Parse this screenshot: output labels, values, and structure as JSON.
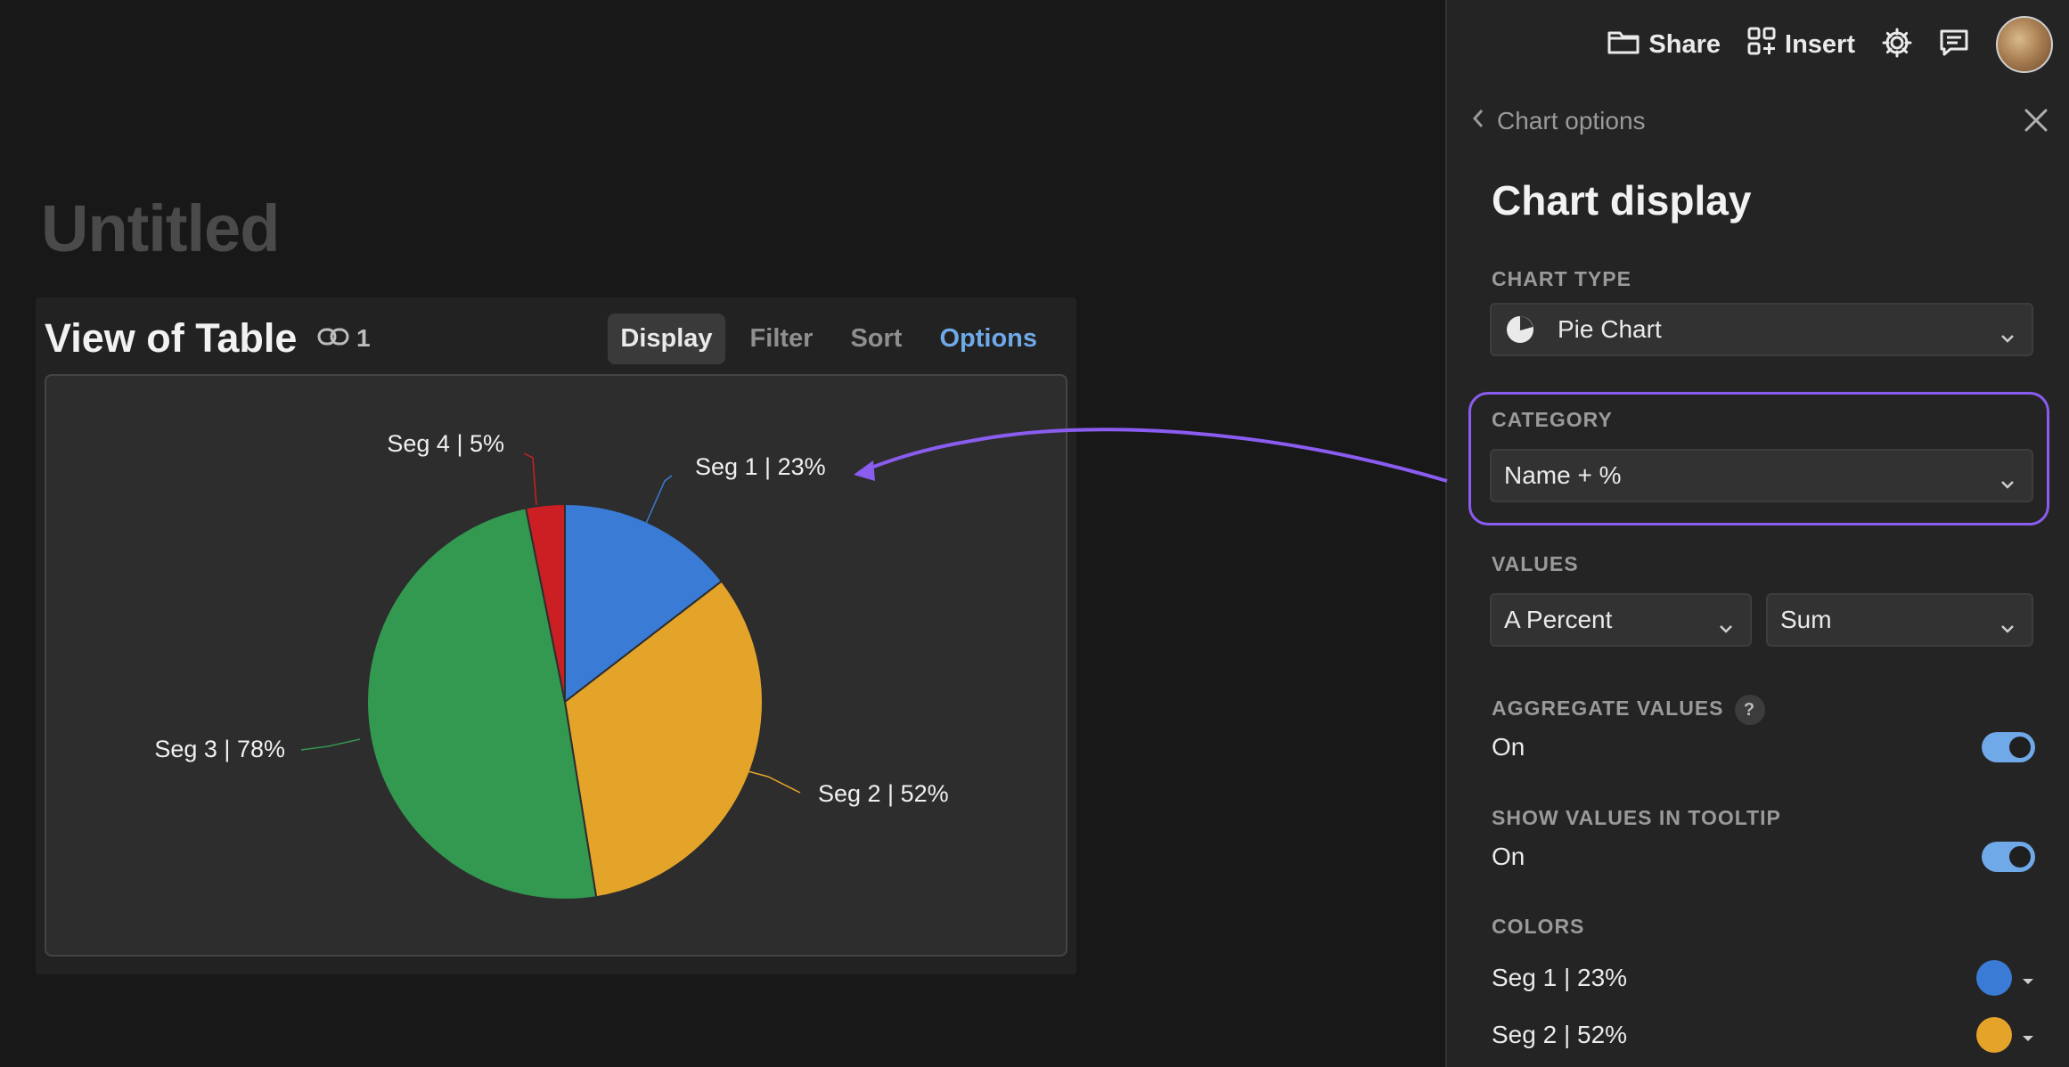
{
  "page": {
    "title": "Untitled"
  },
  "view": {
    "title": "View of Table",
    "link_count": "1",
    "tabs": [
      {
        "label": "Display",
        "active": true
      },
      {
        "label": "Filter"
      },
      {
        "label": "Sort"
      },
      {
        "label": "Options",
        "accent": true
      }
    ]
  },
  "chart_data": {
    "type": "pie",
    "categories": [
      "Seg 1 | 23%",
      "Seg 2 | 52%",
      "Seg 3 | 78%",
      "Seg 4 | 5%"
    ],
    "values": [
      23,
      52,
      78,
      5
    ],
    "colors": [
      "#3a7bd5",
      "#e4a42a",
      "#339850",
      "#cc1f24"
    ]
  },
  "topbar": {
    "share_label": "Share",
    "insert_label": "Insert",
    "icons": [
      "folder-icon",
      "grid-plus-icon",
      "gear-icon",
      "comment-icon",
      "avatar"
    ]
  },
  "panel": {
    "back_label": "Chart options",
    "title": "Chart display",
    "chart_type": {
      "label": "CHART TYPE",
      "value": "Pie Chart"
    },
    "category": {
      "label": "CATEGORY",
      "value": "Name + %"
    },
    "values": {
      "label": "VALUES",
      "field": "A Percent",
      "aggregation": "Sum"
    },
    "aggregate": {
      "label": "AGGREGATE VALUES",
      "help": "?",
      "state": "On"
    },
    "tooltip": {
      "label": "SHOW VALUES IN TOOLTIP",
      "state": "On"
    },
    "colors": {
      "label": "COLORS",
      "items": [
        {
          "label": "Seg 1 | 23%",
          "color": "#3a7bd5"
        },
        {
          "label": "Seg 2 | 52%",
          "color": "#e4a42a"
        }
      ]
    }
  },
  "accent_color": "#8a5cf0"
}
